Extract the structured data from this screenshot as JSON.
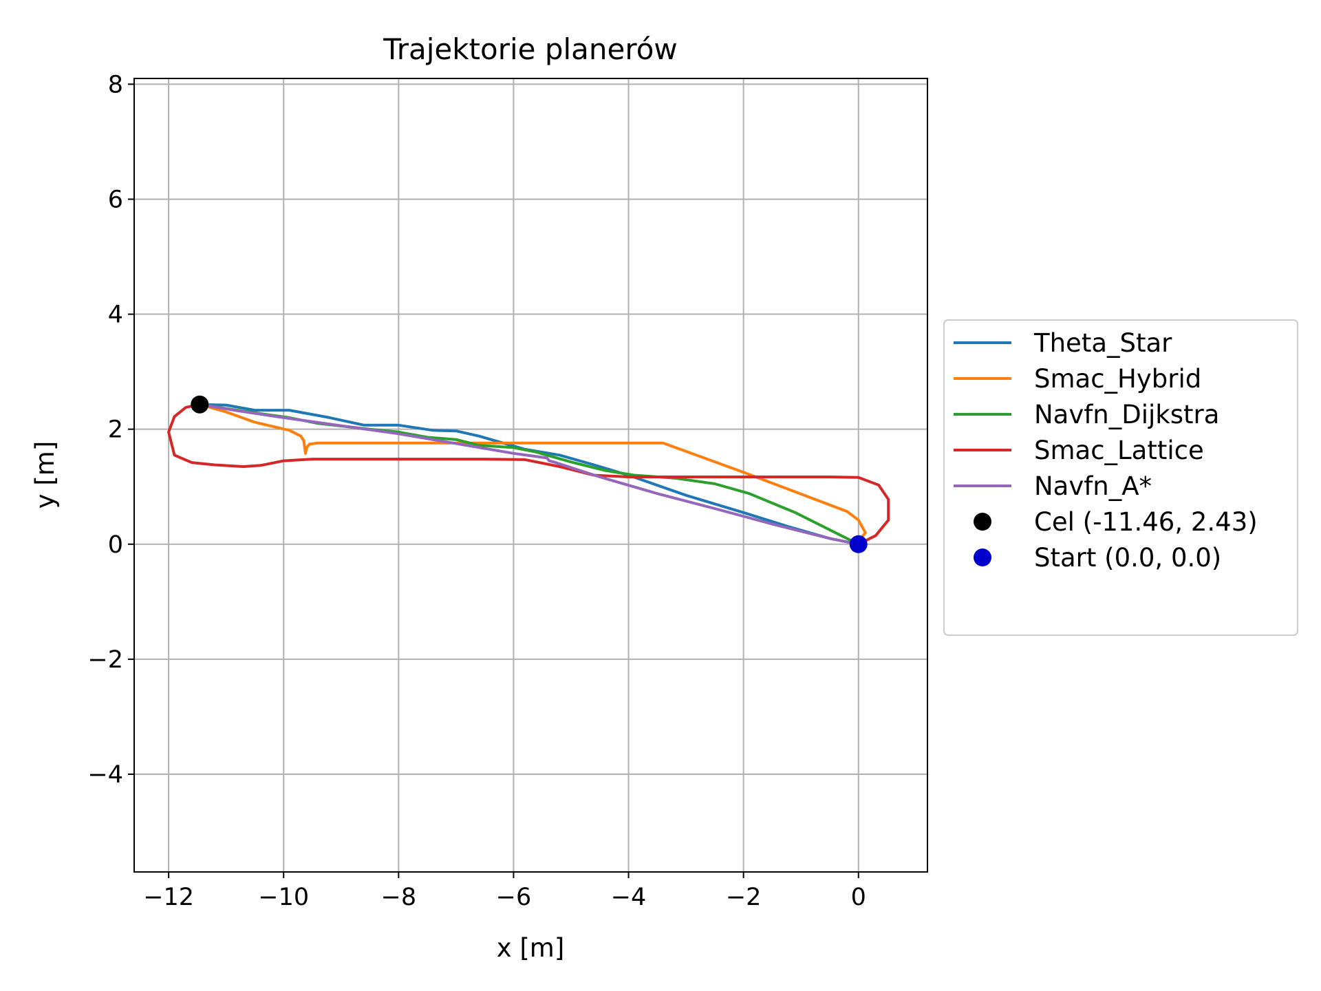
{
  "chart_data": {
    "type": "line",
    "title": "Trajektorie planerów",
    "xlabel": "x [m]",
    "ylabel": "y [m]",
    "xlim": [
      -12.6,
      1.2
    ],
    "ylim": [
      -5.7,
      8.1
    ],
    "xticks": [
      -12,
      -10,
      -8,
      -6,
      -4,
      -2,
      0
    ],
    "xtick_labels": [
      "−12",
      "−10",
      "−8",
      "−6",
      "−4",
      "−2",
      "0"
    ],
    "yticks": [
      -4,
      -2,
      0,
      2,
      4,
      6,
      8
    ],
    "ytick_labels": [
      "−4",
      "−2",
      "0",
      "2",
      "4",
      "6",
      "8"
    ],
    "grid": true,
    "legend_position": "right, outside plot",
    "series": [
      {
        "name": "Theta_Star",
        "color": "#1f77b4",
        "x": [
          0.0,
          -0.5,
          -1.2,
          -2.0,
          -3.0,
          -4.0,
          -4.6,
          -5.2,
          -5.8,
          -6.6,
          -7.0,
          -7.4,
          -8.0,
          -8.6,
          -9.2,
          -9.9,
          -10.5,
          -11.0,
          -11.46
        ],
        "y": [
          0.0,
          0.1,
          0.3,
          0.55,
          0.85,
          1.2,
          1.38,
          1.55,
          1.65,
          1.88,
          1.97,
          1.98,
          2.07,
          2.07,
          2.2,
          2.33,
          2.33,
          2.42,
          2.43
        ]
      },
      {
        "name": "Smac_Hybrid",
        "color": "#ff7f0e",
        "x": [
          0.0,
          0.12,
          0.0,
          -0.2,
          -2.0,
          -3.4,
          -4.0,
          -6.0,
          -8.0,
          -9.4,
          -9.55,
          -9.6,
          -9.62,
          -9.65,
          -9.7,
          -9.9,
          -10.5,
          -11.0,
          -11.46
        ],
        "y": [
          0.05,
          0.2,
          0.42,
          0.57,
          1.25,
          1.76,
          1.76,
          1.76,
          1.76,
          1.76,
          1.74,
          1.68,
          1.58,
          1.8,
          1.88,
          1.98,
          2.12,
          2.3,
          2.43
        ]
      },
      {
        "name": "Navfn_Dijkstra",
        "color": "#2ca02c",
        "x": [
          0.0,
          -0.5,
          -1.1,
          -1.9,
          -2.5,
          -3.2,
          -3.9,
          -4.4,
          -5.0,
          -5.6,
          -6.0,
          -6.6,
          -7.0,
          -7.5,
          -8.0,
          -8.5,
          -9.4,
          -9.9,
          -10.4,
          -11.0,
          -11.46
        ],
        "y": [
          0.0,
          0.25,
          0.55,
          0.88,
          1.05,
          1.15,
          1.2,
          1.28,
          1.43,
          1.6,
          1.68,
          1.72,
          1.82,
          1.86,
          1.95,
          2.0,
          2.1,
          2.2,
          2.27,
          2.36,
          2.43
        ]
      },
      {
        "name": "Smac_Lattice",
        "color": "#d62728",
        "x": [
          0.0,
          0.3,
          0.52,
          0.52,
          0.35,
          0.0,
          -0.5,
          -2.0,
          -4.0,
          -4.6,
          -5.2,
          -5.8,
          -6.5,
          -8.0,
          -9.5,
          -10.0,
          -10.4,
          -10.7,
          -11.2,
          -11.6,
          -11.9,
          -12.0,
          -11.9,
          -11.7,
          -11.46
        ],
        "y": [
          0.0,
          0.15,
          0.42,
          0.78,
          1.03,
          1.16,
          1.17,
          1.17,
          1.17,
          1.2,
          1.35,
          1.47,
          1.48,
          1.48,
          1.48,
          1.45,
          1.37,
          1.35,
          1.38,
          1.42,
          1.55,
          1.95,
          2.22,
          2.38,
          2.43
        ]
      },
      {
        "name": "Navfn_A*",
        "color": "#9467bd",
        "x": [
          0.0,
          -0.5,
          -1.5,
          -2.5,
          -3.5,
          -4.5,
          -5.3,
          -5.38,
          -5.42,
          -6.0,
          -7.0,
          -8.0,
          -9.0,
          -10.0,
          -10.8,
          -11.46
        ],
        "y": [
          0.0,
          0.1,
          0.35,
          0.62,
          0.88,
          1.17,
          1.43,
          1.45,
          1.5,
          1.58,
          1.75,
          1.92,
          2.06,
          2.2,
          2.32,
          2.43
        ]
      }
    ],
    "markers": [
      {
        "name": "Cel (-11.46, 2.43)",
        "color": "#000000",
        "x": -11.46,
        "y": 2.43
      },
      {
        "name": "Start (0.0, 0.0)",
        "color": "#0000cd",
        "x": 0.0,
        "y": 0.0
      }
    ]
  }
}
